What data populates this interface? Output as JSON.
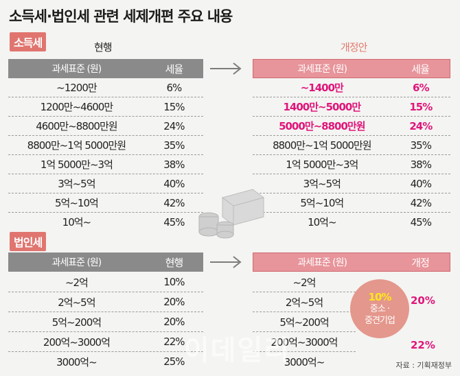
{
  "title": "소득세·법인세 관련 세제개편 주요 내용",
  "income": {
    "badge": "소득세",
    "current_label": "현행",
    "proposed_label": "개정안",
    "hdr_base": "과세표준 (원)",
    "hdr_rate": "세율",
    "current_rows": [
      {
        "base": "~1200만",
        "rate": "6%"
      },
      {
        "base": "1200만~4600만",
        "rate": "15%"
      },
      {
        "base": "4600만~8800만원",
        "rate": "24%"
      },
      {
        "base": "8800만~1억 5000만원",
        "rate": "35%"
      },
      {
        "base": "1억 5000만~3억",
        "rate": "38%"
      },
      {
        "base": "3억~5억",
        "rate": "40%"
      },
      {
        "base": "5억~10억",
        "rate": "42%"
      },
      {
        "base": "10억~",
        "rate": "45%"
      }
    ],
    "proposed_rows": [
      {
        "base": "~1400만",
        "rate": "6%"
      },
      {
        "base": "1400만~5000만",
        "rate": "15%"
      },
      {
        "base": "5000만~8800만원",
        "rate": "24%"
      },
      {
        "base": "8800만~1억 5000만원",
        "rate": "35%"
      },
      {
        "base": "1억 5000만~3억",
        "rate": "38%"
      },
      {
        "base": "3억~5억",
        "rate": "40%"
      },
      {
        "base": "5억~10억",
        "rate": "42%"
      },
      {
        "base": "10억~",
        "rate": "45%"
      }
    ]
  },
  "corporate": {
    "badge": "법인세",
    "hdr_base": "과세표준 (원)",
    "hdr_current": "현행",
    "hdr_proposed": "개정",
    "current_rows": [
      {
        "base": "~2억",
        "rate": "10%"
      },
      {
        "base": "2억~5억",
        "rate": "20%"
      },
      {
        "base": "5억~200억",
        "rate": "20%"
      },
      {
        "base": "200억~3000억",
        "rate": "22%"
      },
      {
        "base": "3000억~",
        "rate": "25%"
      }
    ],
    "proposed_rows": [
      {
        "base": "~2억"
      },
      {
        "base": "2억~5억"
      },
      {
        "base": "5억~200억"
      },
      {
        "base": "200억~3000억"
      },
      {
        "base": "3000억~"
      }
    ],
    "sme_rate": "10%",
    "sme_label_1": "중소 ·",
    "sme_label_2": "중견기업",
    "rate_20": "20%",
    "rate_22": "22%"
  },
  "watermark": "이데일리",
  "source": "자료 : 기획재정부",
  "colors": {
    "accent_pink": "#e0157a",
    "header_gray": "#8a8a8a",
    "header_pink": "#e7949a",
    "badge": "#e0756f"
  }
}
